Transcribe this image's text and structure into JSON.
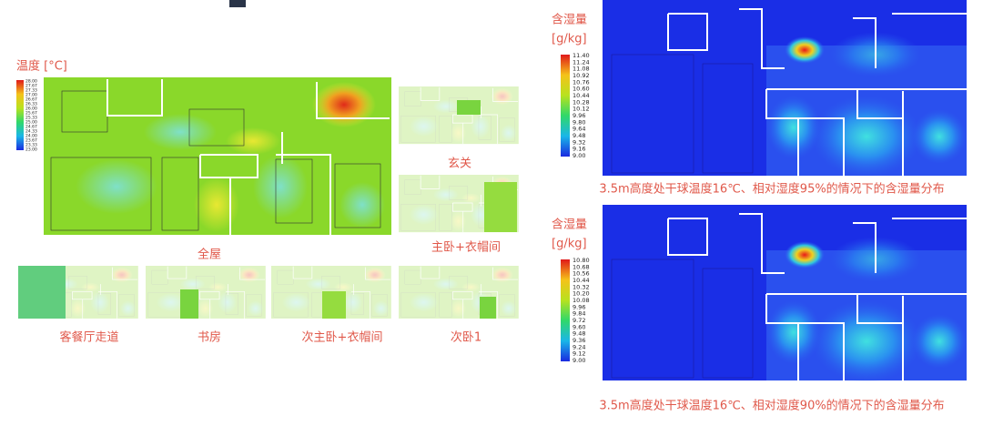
{
  "temperature": {
    "legend_title": "温度 [°C]",
    "ticks": [
      "28.00",
      "27.67",
      "27.33",
      "27.00",
      "26.67",
      "26.33",
      "26.00",
      "25.67",
      "25.33",
      "25.00",
      "24.67",
      "24.33",
      "24.00",
      "23.67",
      "23.33",
      "23.00"
    ],
    "captions": {
      "whole": "全屋",
      "entrance": "玄关",
      "master": "主卧+衣帽间",
      "living": "客餐厅走道",
      "study": "书房",
      "second_master": "次主卧+衣帽间",
      "second_bedroom": "次卧1"
    }
  },
  "humidity": [
    {
      "title": "含湿量",
      "unit": "[g/kg]",
      "ticks": [
        "11.40",
        "11.24",
        "11.08",
        "10.92",
        "10.76",
        "10.60",
        "10.44",
        "10.28",
        "10.12",
        "9.96",
        "9.80",
        "9.64",
        "9.48",
        "9.32",
        "9.16",
        "9.00"
      ],
      "caption": "3.5m高度处干球温度16℃、相对湿度95%的情况下的含湿量分布"
    },
    {
      "title": "含湿量",
      "unit": "[g/kg]",
      "ticks": [
        "10.80",
        "10.68",
        "10.56",
        "10.44",
        "10.32",
        "10.20",
        "10.08",
        "9.96",
        "9.84",
        "9.72",
        "9.60",
        "9.48",
        "9.36",
        "9.24",
        "9.12",
        "9.00"
      ],
      "caption": "3.5m高度处干球温度16℃、相对湿度90%的情况下的含湿量分布"
    }
  ]
}
